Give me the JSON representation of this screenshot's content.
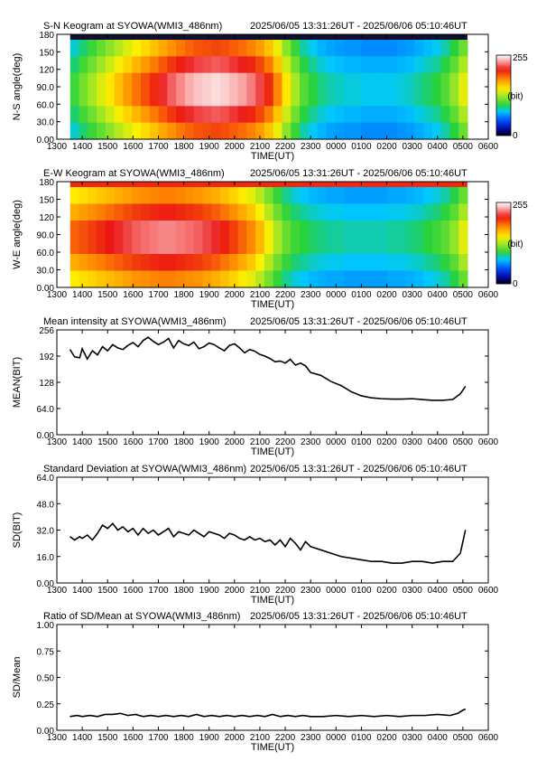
{
  "time_ticks": [
    "1300",
    "1400",
    "1500",
    "1600",
    "1700",
    "1800",
    "1900",
    "2000",
    "2100",
    "2200",
    "2300",
    "0000",
    "0100",
    "0200",
    "0300",
    "0400",
    "0500",
    "0600"
  ],
  "chart_data": [
    {
      "type": "heatmap",
      "title_left": "S-N Keogram at SYOWA(WMI3_486nm)",
      "title_right": "2025/06/05 13:31:26UT - 2025/06/06 05:10:46UT",
      "xlabel": "TIME(UT)",
      "ylabel": "N-S angle(deg)",
      "y_ticks": [
        "0.00",
        "30.0",
        "60.0",
        "90.0",
        "120",
        "150",
        "180"
      ],
      "ylim": [
        0,
        180
      ],
      "colorbar": {
        "max_label": "255",
        "unit_label": "(bit)",
        "min_label": "0"
      },
      "x_start_hours": 13.524,
      "x_end_hours": 29.179,
      "column_values": [
        40,
        45,
        50,
        55,
        60,
        65,
        70,
        74,
        78,
        82,
        86,
        90,
        93,
        96,
        98,
        99,
        100,
        99,
        97,
        95,
        92,
        88,
        82,
        72,
        60,
        50,
        42,
        38,
        35,
        33,
        32,
        31,
        31,
        30,
        30,
        30,
        30,
        31,
        32,
        34,
        36,
        38,
        42,
        48,
        56
      ]
    },
    {
      "type": "heatmap",
      "title_left": "E-W Keogram at SYOWA(WMI3_486nm)",
      "title_right": "2025/06/05 13:31:26UT - 2025/06/06 05:10:46UT",
      "xlabel": "TIME(UT)",
      "ylabel": "W-E angle(deg)",
      "y_ticks": [
        "0.00",
        "30.0",
        "60.0",
        "90.0",
        "120",
        "150",
        "180"
      ],
      "ylim": [
        0,
        180
      ],
      "colorbar": {
        "max_label": "255",
        "unit_label": "(bit)",
        "min_label": "0"
      },
      "x_start_hours": 13.524,
      "x_end_hours": 29.179,
      "column_values": [
        78,
        80,
        82,
        84,
        86,
        88,
        90,
        92,
        93,
        94,
        95,
        95,
        94,
        93,
        92,
        90,
        88,
        85,
        82,
        78,
        74,
        68,
        60,
        52,
        46,
        42,
        40,
        38,
        37,
        36,
        36,
        35,
        35,
        35,
        35,
        35,
        36,
        36,
        37,
        38,
        40,
        42,
        45,
        50,
        58
      ]
    },
    {
      "type": "line",
      "title_left": "Mean intensity at SYOWA(WMI3_486nm)",
      "title_right": "2025/06/05 13:31:26UT - 2025/06/06 05:10:46UT",
      "xlabel": "TIME(UT)",
      "ylabel": "MEAN(BIT)",
      "y_ticks": [
        "0.00",
        "64.0",
        "128",
        "192",
        "256"
      ],
      "ylim": [
        0,
        256
      ],
      "x_hours": [
        13.52,
        13.7,
        13.9,
        14.0,
        14.2,
        14.4,
        14.6,
        14.8,
        15.0,
        15.2,
        15.4,
        15.6,
        15.8,
        16.0,
        16.2,
        16.4,
        16.6,
        16.8,
        17.0,
        17.2,
        17.4,
        17.6,
        17.8,
        18.0,
        18.2,
        18.4,
        18.6,
        18.8,
        19.0,
        19.2,
        19.4,
        19.6,
        19.8,
        20.0,
        20.2,
        20.4,
        20.6,
        20.8,
        21.0,
        21.2,
        21.4,
        21.6,
        21.8,
        22.0,
        22.2,
        22.4,
        22.6,
        22.8,
        23.0,
        23.4,
        23.8,
        24.2,
        24.6,
        25.0,
        25.4,
        25.8,
        26.2,
        26.6,
        27.0,
        27.4,
        27.8,
        28.2,
        28.6,
        28.9,
        29.1
      ],
      "values": [
        208,
        190,
        188,
        210,
        185,
        205,
        195,
        215,
        205,
        220,
        212,
        208,
        218,
        225,
        215,
        230,
        238,
        228,
        220,
        226,
        235,
        212,
        230,
        222,
        218,
        226,
        210,
        215,
        224,
        220,
        212,
        205,
        218,
        222,
        212,
        200,
        208,
        204,
        196,
        192,
        186,
        178,
        180,
        175,
        184,
        170,
        175,
        168,
        152,
        145,
        130,
        120,
        105,
        95,
        90,
        88,
        87,
        87,
        88,
        86,
        84,
        84,
        86,
        100,
        118
      ]
    },
    {
      "type": "line",
      "title_left": "Standard Deviation at SYOWA(WMI3_486nm)",
      "title_right": "2025/06/05 13:31:26UT - 2025/06/06 05:10:46UT",
      "xlabel": "TIME(UT)",
      "ylabel": "SD(BIT)",
      "y_ticks": [
        "0.00",
        "16.0",
        "32.0",
        "48.0",
        "64.0"
      ],
      "ylim": [
        0,
        64
      ],
      "x_hours": [
        13.52,
        13.7,
        13.9,
        14.0,
        14.2,
        14.4,
        14.6,
        14.8,
        15.0,
        15.2,
        15.4,
        15.6,
        15.8,
        16.0,
        16.2,
        16.4,
        16.6,
        16.8,
        17.0,
        17.2,
        17.4,
        17.6,
        17.8,
        18.0,
        18.2,
        18.4,
        18.6,
        18.8,
        19.0,
        19.2,
        19.4,
        19.6,
        19.8,
        20.0,
        20.2,
        20.4,
        20.6,
        20.8,
        21.0,
        21.2,
        21.4,
        21.6,
        21.8,
        22.0,
        22.2,
        22.4,
        22.6,
        22.8,
        23.0,
        23.4,
        23.8,
        24.2,
        24.6,
        25.0,
        25.4,
        25.8,
        26.2,
        26.6,
        27.0,
        27.4,
        27.8,
        28.2,
        28.6,
        28.9,
        29.1
      ],
      "values": [
        28,
        26,
        28,
        27,
        29,
        26,
        30,
        35,
        33,
        36,
        32,
        34,
        31,
        33,
        29,
        33,
        30,
        32,
        29,
        31,
        33,
        28,
        31,
        30,
        29,
        32,
        30,
        28,
        31,
        30,
        29,
        27,
        30,
        29,
        27,
        26,
        28,
        26,
        27,
        25,
        26,
        23,
        26,
        22,
        27,
        24,
        20,
        25,
        22,
        20,
        18,
        16,
        15,
        14,
        13,
        13,
        12,
        12,
        13,
        13,
        12,
        13,
        13,
        18,
        32
      ]
    },
    {
      "type": "line",
      "title_left": "Ratio of SD/Mean at SYOWA(WMI3_486nm)",
      "title_right": "2025/06/05 13:31:26UT - 2025/06/06 05:10:46UT",
      "xlabel": "TIME(UT)",
      "ylabel": "SD/Mean",
      "y_ticks": [
        "0.00",
        "0.25",
        "0.50",
        "0.75",
        "1.00"
      ],
      "ylim": [
        0,
        1
      ],
      "x_hours": [
        13.52,
        13.8,
        14.0,
        14.3,
        14.6,
        14.9,
        15.2,
        15.5,
        15.8,
        16.1,
        16.4,
        16.7,
        17.0,
        17.3,
        17.6,
        17.9,
        18.2,
        18.5,
        18.8,
        19.1,
        19.4,
        19.7,
        20.0,
        20.3,
        20.6,
        20.9,
        21.2,
        21.5,
        21.8,
        22.1,
        22.4,
        22.7,
        23.0,
        23.5,
        24.0,
        24.5,
        25.0,
        25.5,
        26.0,
        26.5,
        27.0,
        27.5,
        28.0,
        28.5,
        28.8,
        29.0,
        29.1
      ],
      "values": [
        0.13,
        0.14,
        0.13,
        0.14,
        0.13,
        0.15,
        0.15,
        0.16,
        0.14,
        0.15,
        0.13,
        0.14,
        0.13,
        0.14,
        0.13,
        0.14,
        0.13,
        0.15,
        0.13,
        0.14,
        0.13,
        0.14,
        0.13,
        0.14,
        0.13,
        0.14,
        0.13,
        0.15,
        0.13,
        0.14,
        0.13,
        0.14,
        0.13,
        0.13,
        0.14,
        0.13,
        0.14,
        0.13,
        0.14,
        0.13,
        0.14,
        0.14,
        0.15,
        0.14,
        0.16,
        0.19,
        0.2
      ]
    }
  ]
}
